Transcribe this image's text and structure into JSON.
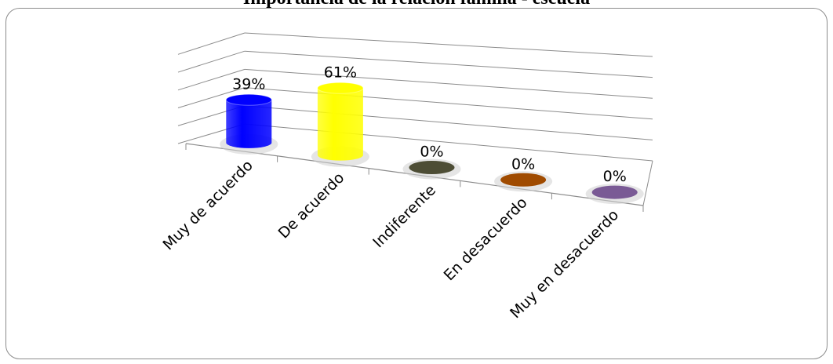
{
  "chart_data": {
    "type": "bar",
    "title": "Importancia de la relación familia - escuela",
    "categories": [
      "Muy de acuerdo",
      "De acuerdo",
      "Indiferente",
      "En desacuerdo",
      "Muy en desacuerdo"
    ],
    "values": [
      39,
      61,
      0,
      0,
      0
    ],
    "data_labels": [
      "39%",
      "61%",
      "0%",
      "0%",
      "0%"
    ],
    "colors": [
      "#0000ff",
      "#ffff00",
      "#4d4d35",
      "#a04b00",
      "#7a5a95"
    ],
    "ylim": [
      0,
      100
    ],
    "grid": true,
    "style": "3d-cylinder"
  }
}
